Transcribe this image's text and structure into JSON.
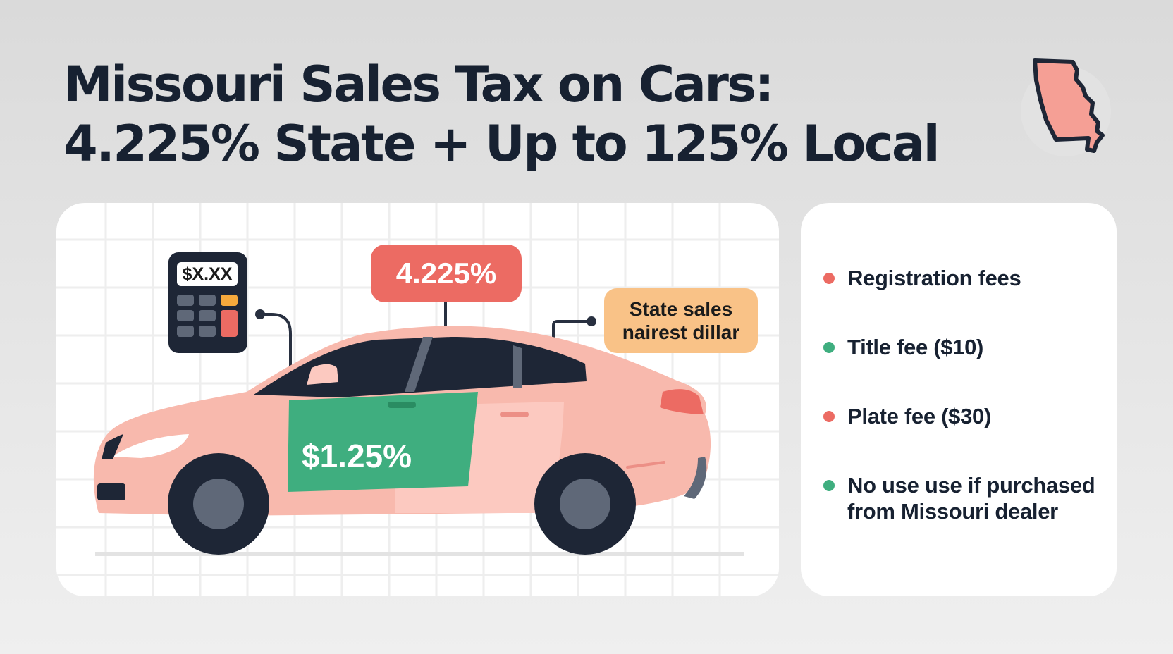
{
  "header": {
    "title_line1": "Missouri Sales Tax on Cars:",
    "title_line2": "4.225% State + Up to 125% Local"
  },
  "illustration": {
    "rate_tag": "4.225%",
    "state_tag_line1": "State sales",
    "state_tag_line2": "nairest dillar",
    "calculator_display": "$X.XX",
    "door_label": "$1.25%",
    "map_icon": "missouri-state-map-icon",
    "calculator_icon": "calculator-icon",
    "car_icon": "sedan-car-icon"
  },
  "fees_list": {
    "items": [
      {
        "label": "Registration fees",
        "color": "#ec6b63"
      },
      {
        "label": "Title fee ($10)",
        "color": "#3fae7f"
      },
      {
        "label": "Plate fee ($30)",
        "color": "#ec6b63"
      },
      {
        "label_line1": "No use use if purchased",
        "label_line2": "from Missouri dealer",
        "color": "#3fae7f"
      }
    ]
  },
  "colors": {
    "accent_red": "#ec6b63",
    "accent_green": "#3fae7f",
    "accent_orange": "#f9c287",
    "car_pink": "#f8b9ad",
    "dark_navy": "#1e2636"
  }
}
